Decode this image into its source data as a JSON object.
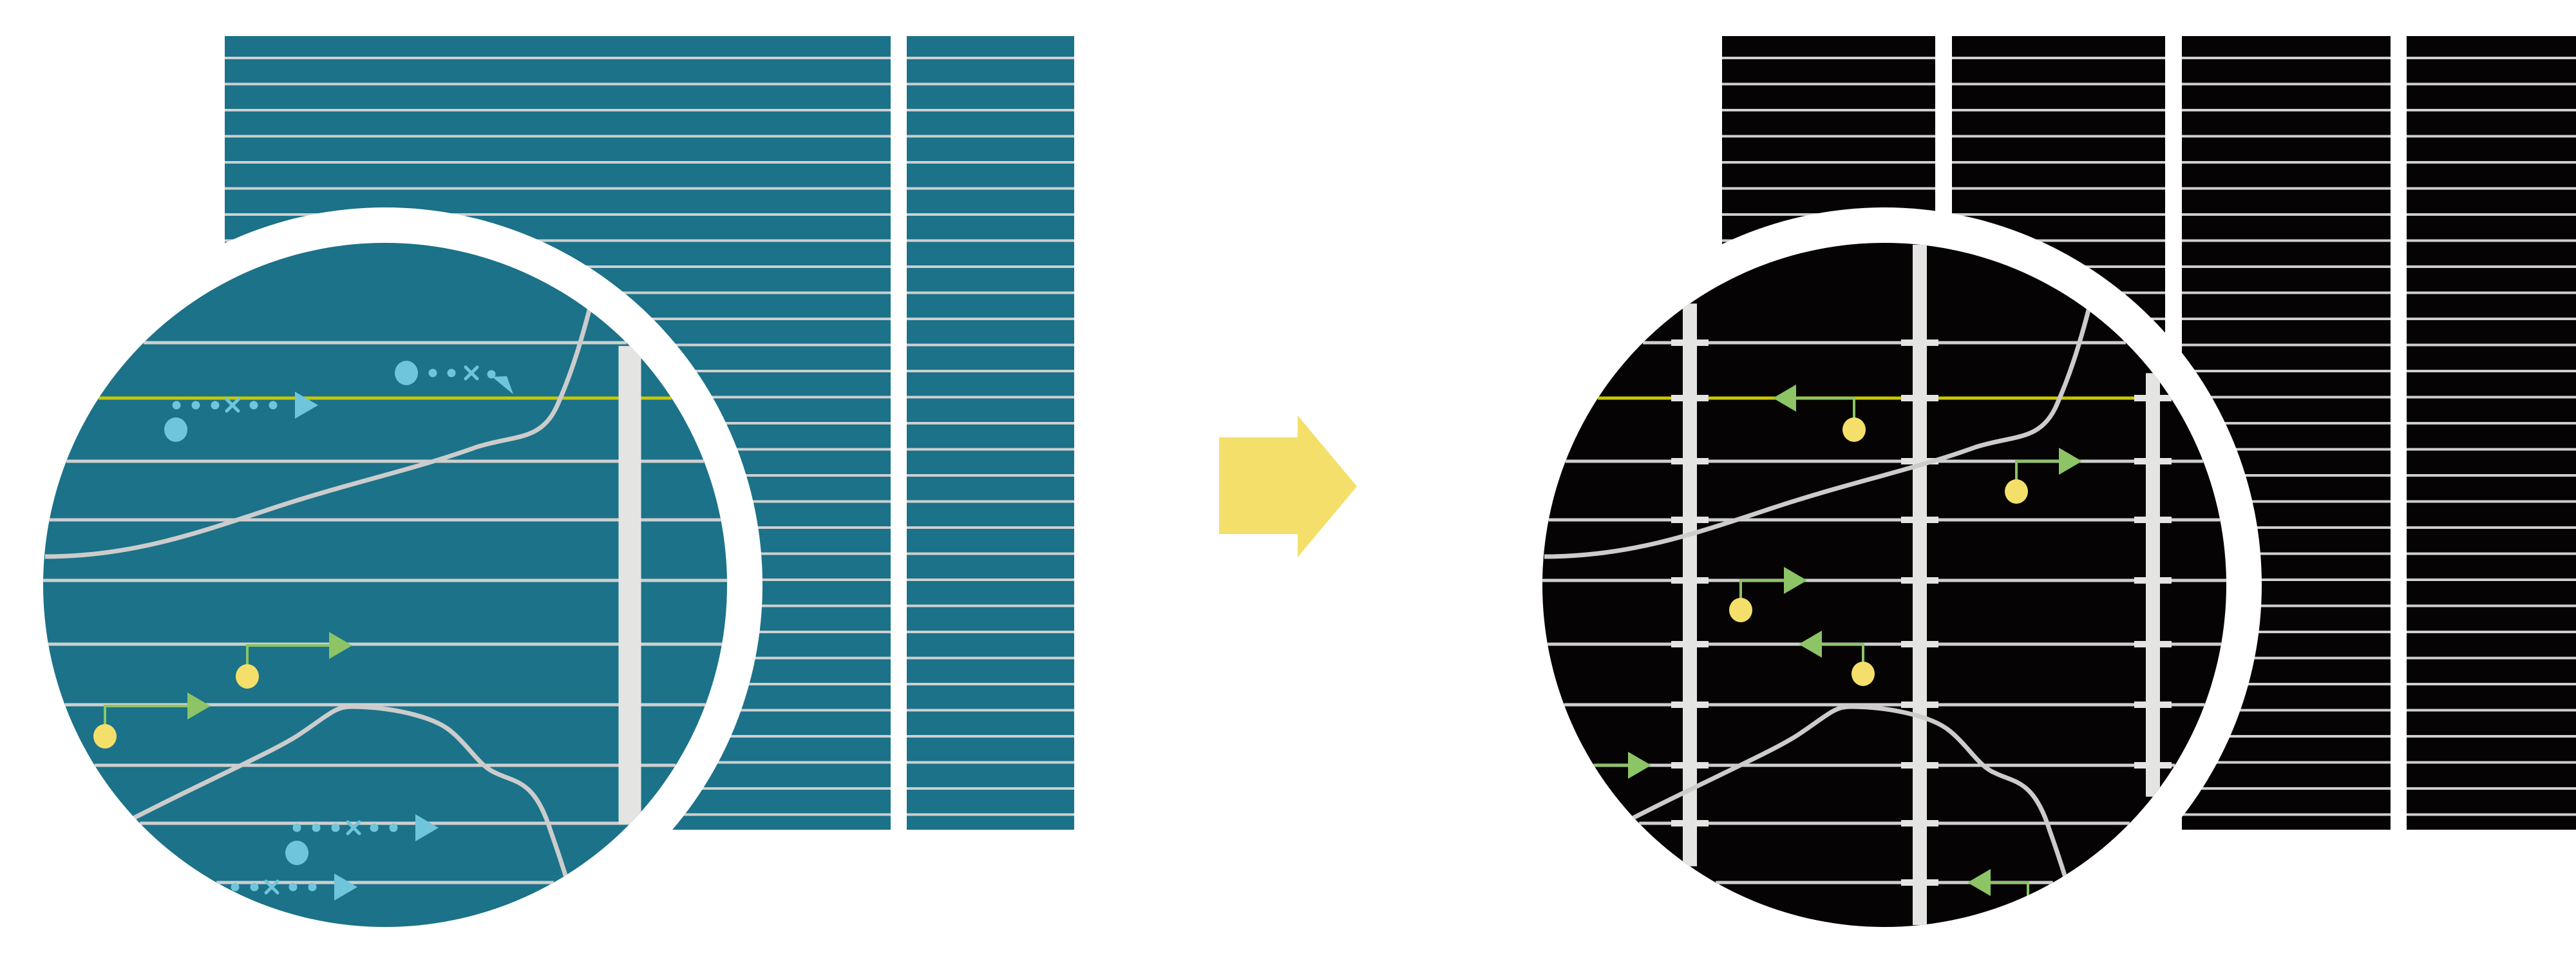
{
  "colors": {
    "background": "#ffffff",
    "before_panel": "#1b7289",
    "after_panel": "#050303",
    "grid_line": "#cfcfcf",
    "vertical_bar": "#e4e4e2",
    "curve": "#cccccc",
    "highlight_line": "#c8c800",
    "blue_marker": "#6fc6dc",
    "green_arrow": "#8cc466",
    "yellow_dot": "#f4df6a",
    "transition_arrow": "#f4df6a",
    "ring": "#ffffff"
  },
  "panels": [
    {
      "id": "before",
      "fill_key": "before_panel"
    },
    {
      "id": "after",
      "fill_key": "after_panel"
    }
  ],
  "transition": {
    "icon": "right-arrow-icon"
  }
}
